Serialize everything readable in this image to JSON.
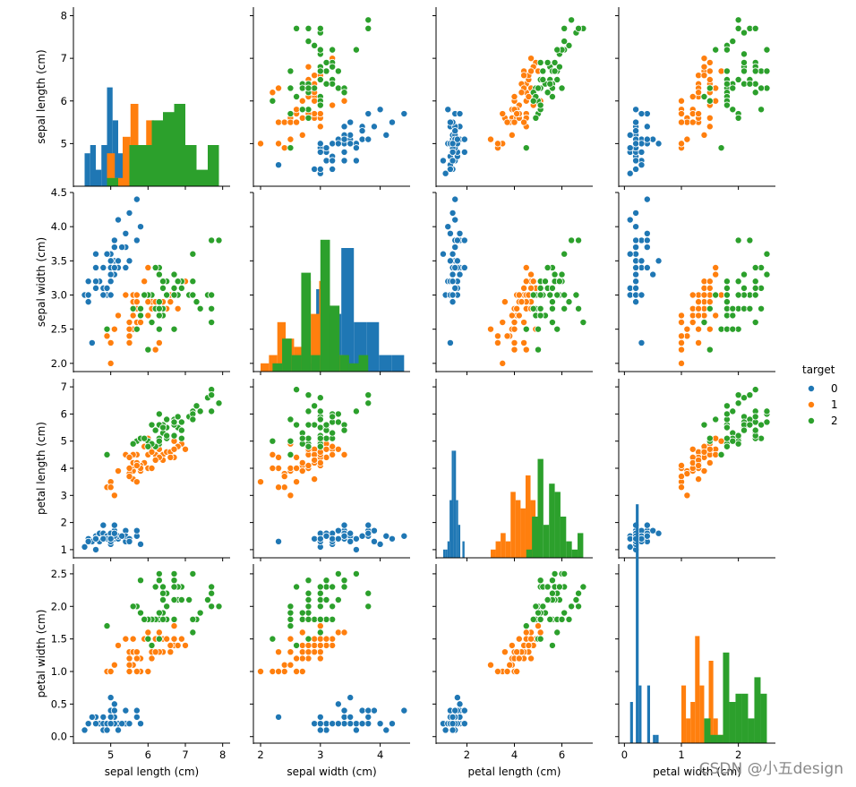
{
  "chart_data": {
    "type": "scatter",
    "title": "",
    "variables": [
      {
        "key": "sl",
        "label": "sepal length (cm)",
        "range": [
          4.0,
          8.2
        ],
        "ticks": [
          5,
          6,
          7,
          8
        ]
      },
      {
        "key": "sw",
        "label": "sepal width (cm)",
        "range": [
          1.88,
          4.5
        ],
        "ticks": [
          2.0,
          2.5,
          3.0,
          3.5,
          4.0,
          4.5
        ],
        "x_ticks": [
          2,
          3,
          4
        ],
        "y_tick_labels": [
          "2.0",
          "2.5",
          "3.0",
          "3.5",
          "4.0",
          "4.5"
        ]
      },
      {
        "key": "pl",
        "label": "petal length (cm)",
        "range": [
          0.7,
          7.3
        ],
        "ticks": [
          1,
          2,
          3,
          4,
          5,
          6,
          7
        ],
        "x_ticks": [
          2,
          4,
          6
        ]
      },
      {
        "key": "pw",
        "label": "petal width (cm)",
        "range": [
          -0.1,
          2.65
        ],
        "ticks": [
          0.0,
          0.5,
          1.0,
          1.5,
          2.0,
          2.5
        ],
        "x_ticks": [
          0,
          1,
          2
        ],
        "y_tick_labels": [
          "0.0",
          "0.5",
          "1.0",
          "1.5",
          "2.0",
          "2.5"
        ]
      }
    ],
    "legend": {
      "title": "target",
      "placement": "right",
      "entries": [
        "0",
        "1",
        "2"
      ]
    },
    "colors": {
      "0": "#1f77b4",
      "1": "#ff7f0e",
      "2": "#2ca02c"
    },
    "hue": "target",
    "series": [
      {
        "name": "0",
        "points": [
          [
            5.1,
            3.5,
            1.4,
            0.2
          ],
          [
            4.9,
            3.0,
            1.4,
            0.2
          ],
          [
            4.7,
            3.2,
            1.3,
            0.2
          ],
          [
            4.6,
            3.1,
            1.5,
            0.2
          ],
          [
            5.0,
            3.6,
            1.4,
            0.2
          ],
          [
            5.4,
            3.9,
            1.7,
            0.4
          ],
          [
            4.6,
            3.4,
            1.4,
            0.3
          ],
          [
            5.0,
            3.4,
            1.5,
            0.2
          ],
          [
            4.4,
            2.9,
            1.4,
            0.2
          ],
          [
            4.9,
            3.1,
            1.5,
            0.1
          ],
          [
            5.4,
            3.7,
            1.5,
            0.2
          ],
          [
            4.8,
            3.4,
            1.6,
            0.2
          ],
          [
            4.8,
            3.0,
            1.4,
            0.1
          ],
          [
            4.3,
            3.0,
            1.1,
            0.1
          ],
          [
            5.8,
            4.0,
            1.2,
            0.2
          ],
          [
            5.7,
            4.4,
            1.5,
            0.4
          ],
          [
            5.4,
            3.9,
            1.3,
            0.4
          ],
          [
            5.1,
            3.5,
            1.4,
            0.3
          ],
          [
            5.7,
            3.8,
            1.7,
            0.3
          ],
          [
            5.1,
            3.8,
            1.5,
            0.3
          ],
          [
            5.4,
            3.4,
            1.7,
            0.2
          ],
          [
            5.1,
            3.7,
            1.5,
            0.4
          ],
          [
            4.6,
            3.6,
            1.0,
            0.2
          ],
          [
            5.1,
            3.3,
            1.7,
            0.5
          ],
          [
            4.8,
            3.4,
            1.9,
            0.2
          ],
          [
            5.0,
            3.0,
            1.6,
            0.2
          ],
          [
            5.0,
            3.4,
            1.6,
            0.4
          ],
          [
            5.2,
            3.5,
            1.5,
            0.2
          ],
          [
            5.2,
            3.4,
            1.4,
            0.2
          ],
          [
            4.7,
            3.2,
            1.6,
            0.2
          ],
          [
            4.8,
            3.1,
            1.6,
            0.2
          ],
          [
            5.4,
            3.4,
            1.5,
            0.4
          ],
          [
            5.2,
            4.1,
            1.5,
            0.1
          ],
          [
            5.5,
            4.2,
            1.4,
            0.2
          ],
          [
            4.9,
            3.1,
            1.5,
            0.2
          ],
          [
            5.0,
            3.2,
            1.2,
            0.2
          ],
          [
            5.5,
            3.5,
            1.3,
            0.2
          ],
          [
            4.9,
            3.6,
            1.4,
            0.1
          ],
          [
            4.4,
            3.0,
            1.3,
            0.2
          ],
          [
            5.1,
            3.4,
            1.5,
            0.2
          ],
          [
            5.0,
            3.5,
            1.3,
            0.3
          ],
          [
            4.5,
            2.3,
            1.3,
            0.3
          ],
          [
            4.4,
            3.2,
            1.3,
            0.2
          ],
          [
            5.0,
            3.5,
            1.6,
            0.6
          ],
          [
            5.1,
            3.8,
            1.9,
            0.4
          ],
          [
            4.8,
            3.0,
            1.4,
            0.3
          ],
          [
            5.1,
            3.8,
            1.6,
            0.2
          ],
          [
            4.6,
            3.2,
            1.4,
            0.2
          ],
          [
            5.3,
            3.7,
            1.5,
            0.2
          ],
          [
            5.0,
            3.3,
            1.4,
            0.2
          ]
        ]
      },
      {
        "name": "1",
        "points": [
          [
            7.0,
            3.2,
            4.7,
            1.4
          ],
          [
            6.4,
            3.2,
            4.5,
            1.5
          ],
          [
            6.9,
            3.1,
            4.9,
            1.5
          ],
          [
            5.5,
            2.3,
            4.0,
            1.3
          ],
          [
            6.5,
            2.8,
            4.6,
            1.5
          ],
          [
            5.7,
            2.8,
            4.5,
            1.3
          ],
          [
            6.3,
            3.3,
            4.7,
            1.6
          ],
          [
            4.9,
            2.4,
            3.3,
            1.0
          ],
          [
            6.6,
            2.9,
            4.6,
            1.3
          ],
          [
            5.2,
            2.7,
            3.9,
            1.4
          ],
          [
            5.0,
            2.0,
            3.5,
            1.0
          ],
          [
            5.9,
            3.0,
            4.2,
            1.5
          ],
          [
            6.0,
            2.2,
            4.0,
            1.0
          ],
          [
            6.1,
            2.9,
            4.7,
            1.4
          ],
          [
            5.6,
            2.9,
            3.6,
            1.3
          ],
          [
            6.7,
            3.1,
            4.4,
            1.4
          ],
          [
            5.6,
            3.0,
            4.5,
            1.5
          ],
          [
            5.8,
            2.7,
            4.1,
            1.0
          ],
          [
            6.2,
            2.2,
            4.5,
            1.5
          ],
          [
            5.6,
            2.5,
            3.9,
            1.1
          ],
          [
            5.9,
            3.2,
            4.8,
            1.8
          ],
          [
            6.1,
            2.8,
            4.0,
            1.3
          ],
          [
            6.3,
            2.5,
            4.9,
            1.5
          ],
          [
            6.1,
            2.8,
            4.7,
            1.2
          ],
          [
            6.4,
            2.9,
            4.3,
            1.3
          ],
          [
            6.6,
            3.0,
            4.4,
            1.4
          ],
          [
            6.8,
            2.8,
            4.8,
            1.4
          ],
          [
            6.7,
            3.0,
            5.0,
            1.7
          ],
          [
            6.0,
            2.9,
            4.5,
            1.5
          ],
          [
            5.7,
            2.6,
            3.5,
            1.0
          ],
          [
            5.5,
            2.4,
            3.8,
            1.1
          ],
          [
            5.5,
            2.4,
            3.7,
            1.0
          ],
          [
            5.8,
            2.7,
            3.9,
            1.2
          ],
          [
            6.0,
            2.7,
            5.1,
            1.6
          ],
          [
            5.4,
            3.0,
            4.5,
            1.5
          ],
          [
            6.0,
            3.4,
            4.5,
            1.6
          ],
          [
            6.7,
            3.1,
            4.7,
            1.5
          ],
          [
            6.3,
            2.3,
            4.4,
            1.3
          ],
          [
            5.6,
            3.0,
            4.1,
            1.3
          ],
          [
            5.5,
            2.5,
            4.0,
            1.3
          ],
          [
            5.5,
            2.6,
            4.4,
            1.2
          ],
          [
            6.1,
            3.0,
            4.6,
            1.4
          ],
          [
            5.8,
            2.6,
            4.0,
            1.2
          ],
          [
            5.0,
            2.3,
            3.3,
            1.0
          ],
          [
            5.6,
            2.7,
            4.2,
            1.3
          ],
          [
            5.7,
            3.0,
            4.2,
            1.2
          ],
          [
            5.7,
            2.9,
            4.2,
            1.3
          ],
          [
            6.2,
            2.9,
            4.3,
            1.3
          ],
          [
            5.1,
            2.5,
            3.0,
            1.1
          ],
          [
            5.7,
            2.8,
            4.1,
            1.3
          ]
        ]
      },
      {
        "name": "2",
        "points": [
          [
            6.3,
            3.3,
            6.0,
            2.5
          ],
          [
            5.8,
            2.7,
            5.1,
            1.9
          ],
          [
            7.1,
            3.0,
            5.9,
            2.1
          ],
          [
            6.3,
            2.9,
            5.6,
            1.8
          ],
          [
            6.5,
            3.0,
            5.8,
            2.2
          ],
          [
            7.6,
            3.0,
            6.6,
            2.1
          ],
          [
            4.9,
            2.5,
            4.5,
            1.7
          ],
          [
            7.3,
            2.9,
            6.3,
            1.8
          ],
          [
            6.7,
            2.5,
            5.8,
            1.8
          ],
          [
            7.2,
            3.6,
            6.1,
            2.5
          ],
          [
            6.5,
            3.2,
            5.1,
            2.0
          ],
          [
            6.4,
            2.7,
            5.3,
            1.9
          ],
          [
            6.8,
            3.0,
            5.5,
            2.1
          ],
          [
            5.7,
            2.5,
            5.0,
            2.0
          ],
          [
            5.8,
            2.8,
            5.1,
            2.4
          ],
          [
            6.4,
            3.2,
            5.3,
            2.3
          ],
          [
            6.5,
            3.0,
            5.5,
            1.8
          ],
          [
            7.7,
            3.8,
            6.7,
            2.2
          ],
          [
            7.7,
            2.6,
            6.9,
            2.3
          ],
          [
            6.0,
            2.2,
            5.0,
            1.5
          ],
          [
            6.9,
            3.2,
            5.7,
            2.3
          ],
          [
            5.6,
            2.8,
            4.9,
            2.0
          ],
          [
            7.7,
            2.8,
            6.7,
            2.0
          ],
          [
            6.3,
            2.7,
            4.9,
            1.8
          ],
          [
            6.7,
            3.3,
            5.7,
            2.1
          ],
          [
            7.2,
            3.2,
            6.0,
            1.8
          ],
          [
            6.2,
            2.8,
            4.8,
            1.8
          ],
          [
            6.1,
            3.0,
            4.9,
            1.8
          ],
          [
            6.4,
            2.8,
            5.6,
            2.1
          ],
          [
            7.2,
            3.0,
            5.8,
            1.6
          ],
          [
            7.4,
            2.8,
            6.1,
            1.9
          ],
          [
            7.9,
            3.8,
            6.4,
            2.0
          ],
          [
            6.4,
            2.8,
            5.6,
            2.2
          ],
          [
            6.3,
            2.8,
            5.1,
            1.5
          ],
          [
            6.1,
            2.6,
            5.6,
            1.4
          ],
          [
            7.7,
            3.0,
            6.1,
            2.3
          ],
          [
            6.3,
            3.4,
            5.6,
            2.4
          ],
          [
            6.4,
            3.1,
            5.5,
            1.8
          ],
          [
            6.0,
            3.0,
            4.8,
            1.8
          ],
          [
            6.9,
            3.1,
            5.4,
            2.1
          ],
          [
            6.7,
            3.1,
            5.6,
            2.4
          ],
          [
            6.9,
            3.1,
            5.1,
            2.3
          ],
          [
            5.8,
            2.7,
            5.1,
            1.9
          ],
          [
            6.8,
            3.2,
            5.9,
            2.3
          ],
          [
            6.7,
            3.3,
            5.7,
            2.5
          ],
          [
            6.7,
            3.0,
            5.2,
            2.3
          ],
          [
            6.3,
            2.5,
            5.0,
            1.9
          ],
          [
            6.5,
            3.0,
            5.2,
            2.0
          ],
          [
            6.2,
            3.4,
            5.4,
            2.3
          ],
          [
            5.9,
            3.0,
            5.1,
            1.8
          ]
        ]
      }
    ]
  },
  "watermark": "CSDN @小五design"
}
